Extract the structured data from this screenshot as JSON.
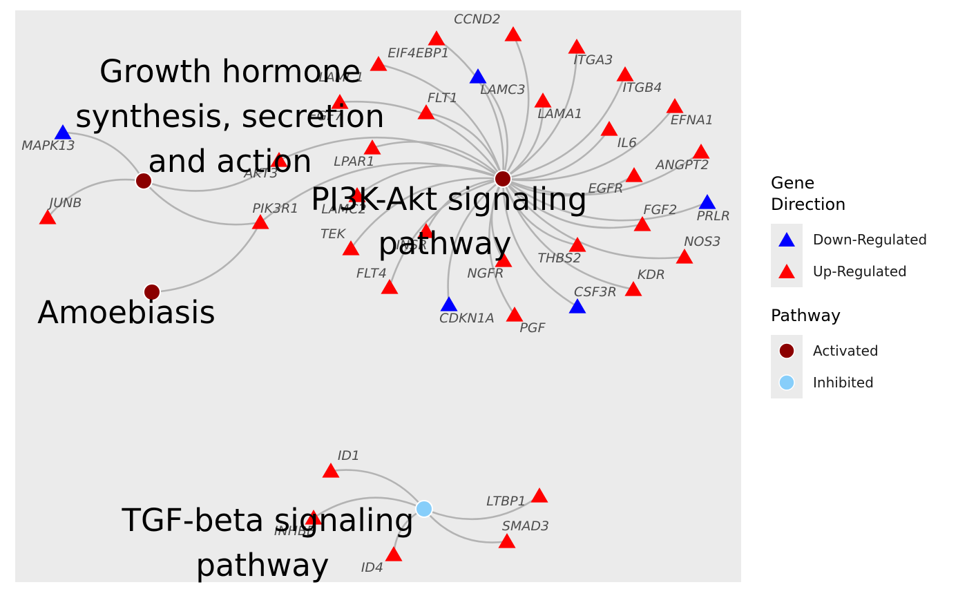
{
  "colors": {
    "panel_bg": "#ebebeb",
    "edge": "#b3b3b3",
    "up_regulated": "#ff0000",
    "down_regulated": "#0000ff",
    "activated": "#8b0000",
    "inhibited": "#87cefa"
  },
  "pathways": [
    {
      "id": "pi3k",
      "label": "PI3K-Akt signaling pathway",
      "status": "Activated"
    },
    {
      "id": "gh",
      "label": "Growth hormone synthesis, secretion and action",
      "status": "Activated"
    },
    {
      "id": "amoeba",
      "label": "Amoebiasis",
      "status": "Activated"
    },
    {
      "id": "tgf",
      "label": "TGF-beta signaling pathway",
      "status": "Inhibited"
    }
  ],
  "genes": [
    {
      "label": "CCND2",
      "direction": "Up-Regulated"
    },
    {
      "label": "EIF4EBP1",
      "direction": "Up-Regulated"
    },
    {
      "label": "ITGA3",
      "direction": "Up-Regulated"
    },
    {
      "label": "LAMC1",
      "direction": "Up-Regulated"
    },
    {
      "label": "LAMC3",
      "direction": "Down-Regulated"
    },
    {
      "label": "ITGB4",
      "direction": "Up-Regulated"
    },
    {
      "label": "FLT1",
      "direction": "Up-Regulated"
    },
    {
      "label": "EFNA1",
      "direction": "Up-Regulated"
    },
    {
      "label": "LAMA1",
      "direction": "Up-Regulated"
    },
    {
      "label": "FGF7",
      "direction": "Up-Regulated"
    },
    {
      "label": "MAPK13",
      "direction": "Down-Regulated"
    },
    {
      "label": "IL6",
      "direction": "Up-Regulated"
    },
    {
      "label": "LPAR1",
      "direction": "Up-Regulated"
    },
    {
      "label": "ANGPT2",
      "direction": "Up-Regulated"
    },
    {
      "label": "AKT3",
      "direction": "Up-Regulated"
    },
    {
      "label": "EGFR",
      "direction": "Up-Regulated"
    },
    {
      "label": "JUNB",
      "direction": "Up-Regulated"
    },
    {
      "label": "LAMC2",
      "direction": "Up-Regulated"
    },
    {
      "label": "PRLR",
      "direction": "Down-Regulated"
    },
    {
      "label": "PIK3R1",
      "direction": "Up-Regulated"
    },
    {
      "label": "FGF2",
      "direction": "Up-Regulated"
    },
    {
      "label": "TEK",
      "direction": "Up-Regulated"
    },
    {
      "label": "INSR",
      "direction": "Up-Regulated"
    },
    {
      "label": "NOS3",
      "direction": "Up-Regulated"
    },
    {
      "label": "THBS2",
      "direction": "Up-Regulated"
    },
    {
      "label": "NGFR",
      "direction": "Up-Regulated"
    },
    {
      "label": "FLT4",
      "direction": "Up-Regulated"
    },
    {
      "label": "KDR",
      "direction": "Up-Regulated"
    },
    {
      "label": "CSF3R",
      "direction": "Down-Regulated"
    },
    {
      "label": "CDKN1A",
      "direction": "Down-Regulated"
    },
    {
      "label": "PGF",
      "direction": "Up-Regulated"
    },
    {
      "label": "ID1",
      "direction": "Up-Regulated"
    },
    {
      "label": "LTBP1",
      "direction": "Up-Regulated"
    },
    {
      "label": "SMAD3",
      "direction": "Up-Regulated"
    },
    {
      "label": "INHBB",
      "direction": "Up-Regulated"
    },
    {
      "label": "ID4",
      "direction": "Up-Regulated"
    }
  ],
  "edges": [
    [
      "pi3k",
      "CCND2"
    ],
    [
      "pi3k",
      "EIF4EBP1"
    ],
    [
      "pi3k",
      "ITGA3"
    ],
    [
      "pi3k",
      "LAMC1"
    ],
    [
      "pi3k",
      "LAMC3"
    ],
    [
      "pi3k",
      "ITGB4"
    ],
    [
      "pi3k",
      "FLT1"
    ],
    [
      "pi3k",
      "EFNA1"
    ],
    [
      "pi3k",
      "LAMA1"
    ],
    [
      "pi3k",
      "FGF7"
    ],
    [
      "pi3k",
      "IL6"
    ],
    [
      "pi3k",
      "LPAR1"
    ],
    [
      "pi3k",
      "ANGPT2"
    ],
    [
      "pi3k",
      "AKT3"
    ],
    [
      "pi3k",
      "EGFR"
    ],
    [
      "pi3k",
      "LAMC2"
    ],
    [
      "pi3k",
      "PRLR"
    ],
    [
      "pi3k",
      "PIK3R1"
    ],
    [
      "pi3k",
      "FGF2"
    ],
    [
      "pi3k",
      "TEK"
    ],
    [
      "pi3k",
      "INSR"
    ],
    [
      "pi3k",
      "NOS3"
    ],
    [
      "pi3k",
      "THBS2"
    ],
    [
      "pi3k",
      "NGFR"
    ],
    [
      "pi3k",
      "FLT4"
    ],
    [
      "pi3k",
      "KDR"
    ],
    [
      "pi3k",
      "CSF3R"
    ],
    [
      "pi3k",
      "CDKN1A"
    ],
    [
      "pi3k",
      "PGF"
    ],
    [
      "gh",
      "MAPK13"
    ],
    [
      "gh",
      "JUNB"
    ],
    [
      "gh",
      "AKT3"
    ],
    [
      "gh",
      "PIK3R1"
    ],
    [
      "amoeba",
      "PIK3R1"
    ],
    [
      "tgf",
      "ID1"
    ],
    [
      "tgf",
      "LTBP1"
    ],
    [
      "tgf",
      "SMAD3"
    ],
    [
      "tgf",
      "INHBB"
    ],
    [
      "tgf",
      "ID4"
    ]
  ],
  "legend": {
    "gene_title": "Gene Direction",
    "gene_items": [
      {
        "label": "Down-Regulated",
        "direction": "Down-Regulated"
      },
      {
        "label": "Up-Regulated",
        "direction": "Up-Regulated"
      }
    ],
    "pathway_title": "Pathway",
    "pathway_items": [
      {
        "label": "Activated",
        "status": "Activated"
      },
      {
        "label": "Inhibited",
        "status": "Inhibited"
      }
    ]
  }
}
